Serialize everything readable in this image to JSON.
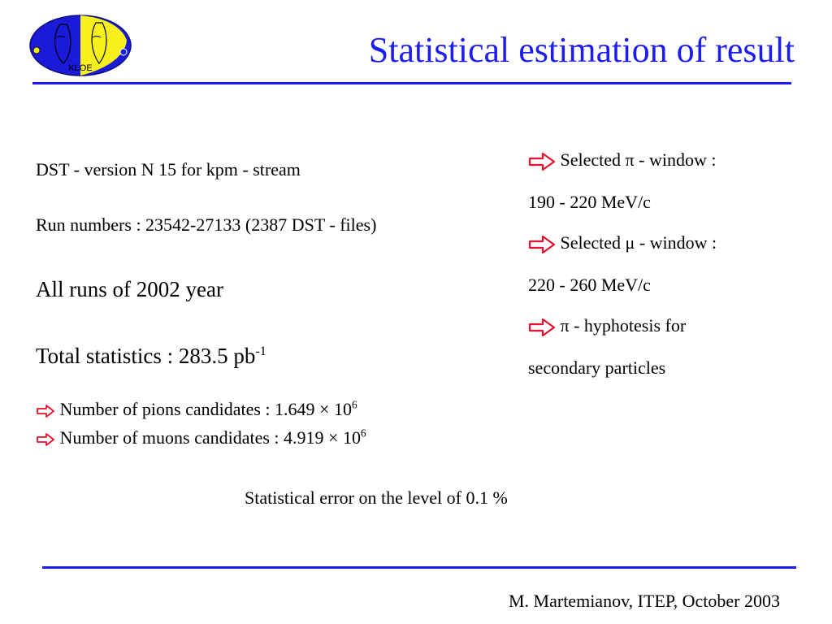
{
  "slide": {
    "title": "Statistical estimation of result",
    "logo_text": "KLOE",
    "left": {
      "dst_line": "DST - version  N 15  for kpm - stream",
      "run_numbers": "Run numbers : 23542-27133 (2387 DST - files)",
      "all_runs": "All runs of 2002 year",
      "total_stats_base": "Total statistics : 283.5 pb",
      "total_stats_exp": "-1",
      "pions_text": "Number of pions candidates :    1.649 × 10",
      "pions_exp": "6",
      "muons_text": "Number of muons candidates :  4.919 × 10",
      "muons_exp": "6"
    },
    "right": {
      "pi_window_label": "Selected π - window :",
      "pi_window_range": "190 - 220 MeV/c",
      "mu_window_label": "Selected μ - window :",
      "mu_window_range": "220 - 260 MeV/c",
      "hypothesis_label": "π - hyphotesis for",
      "hypothesis_cont": "secondary particles"
    },
    "statistical_error": "Statistical error  on the level of 0.1 %",
    "footer": "M. Martemianov, ITEP, October 2003"
  },
  "colors": {
    "title": "#1d1df0",
    "rule": "#1c1cf2",
    "logo_blue": "#1a1ad8",
    "logo_yellow": "#f7f01c",
    "arrow": "#e8102c"
  },
  "icons": [
    "kloe-logo",
    "right-arrow-icon"
  ]
}
